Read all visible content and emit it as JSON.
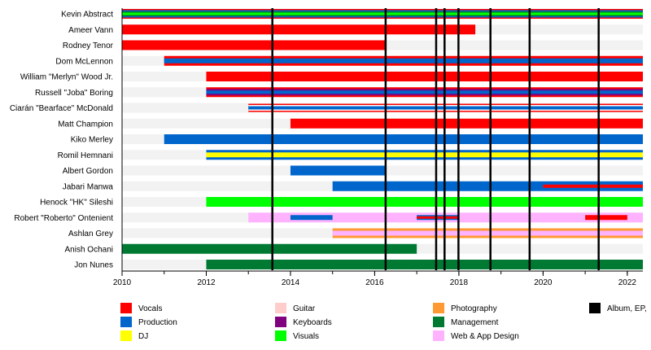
{
  "chart_data": {
    "type": "timeline",
    "title": "",
    "xlim": [
      2010,
      2022.37
    ],
    "x_ticks": [
      2010,
      2012,
      2014,
      2016,
      2018,
      2020,
      2022
    ],
    "x_tick_labels": [
      "2010",
      "2012",
      "2014",
      "2016",
      "2018",
      "2020",
      "2022"
    ],
    "grid": false,
    "roles": {
      "vocals": {
        "label": "Vocals",
        "color": "#ff0000"
      },
      "production": {
        "label": "Production",
        "color": "#0066cc"
      },
      "dj": {
        "label": "DJ",
        "color": "#ffff00"
      },
      "guitar": {
        "label": "Guitar",
        "color": "#ffcccc"
      },
      "keyboards": {
        "label": "Keyboards",
        "color": "#800080"
      },
      "visuals": {
        "label": "Visuals",
        "color": "#00ff00"
      },
      "photography": {
        "label": "Photography",
        "color": "#ff9933"
      },
      "management": {
        "label": "Management",
        "color": "#007a33"
      },
      "web": {
        "label": "Web & App Design",
        "color": "#ffb3ff"
      },
      "album": {
        "label": "Album, EP,",
        "color": "#000000"
      }
    },
    "legend_columns": [
      [
        "vocals",
        "production",
        "dj"
      ],
      [
        "guitar",
        "keyboards",
        "visuals"
      ],
      [
        "photography",
        "management",
        "web"
      ],
      [
        "album"
      ]
    ],
    "releases": [
      2013.57,
      2016.26,
      2017.46,
      2017.66,
      2017.99,
      2018.75,
      2019.68,
      2021.32
    ],
    "members": [
      {
        "name": "Kevin Abstract",
        "segments": [
          {
            "start": 2010,
            "end": 2022.37,
            "roles": [
              "vocals",
              "production",
              "management",
              "visuals"
            ]
          }
        ]
      },
      {
        "name": "Ameer Vann",
        "segments": [
          {
            "start": 2010,
            "end": 2018.39,
            "roles": [
              "vocals"
            ]
          }
        ]
      },
      {
        "name": "Rodney Tenor",
        "segments": [
          {
            "start": 2010,
            "end": 2016.26,
            "roles": [
              "vocals"
            ]
          }
        ]
      },
      {
        "name": "Dom McLennon",
        "segments": [
          {
            "start": 2011,
            "end": 2022.37,
            "roles": [
              "vocals",
              "production"
            ]
          }
        ]
      },
      {
        "name": "William \"Merlyn\" Wood Jr.",
        "segments": [
          {
            "start": 2012,
            "end": 2022.37,
            "roles": [
              "vocals"
            ]
          }
        ]
      },
      {
        "name": "Russell \"Joba\" Boring",
        "segments": [
          {
            "start": 2012,
            "end": 2022.37,
            "roles": [
              "vocals",
              "keyboards",
              "production"
            ]
          }
        ]
      },
      {
        "name": "Ciarán \"Bearface\" McDonald",
        "segments": [
          {
            "start": 2013,
            "end": 2022.37,
            "roles": [
              "vocals",
              "production"
            ],
            "thin": true
          }
        ]
      },
      {
        "name": "Matt Champion",
        "segments": [
          {
            "start": 2014,
            "end": 2022.37,
            "roles": [
              "vocals"
            ]
          }
        ]
      },
      {
        "name": "Kiko Merley",
        "segments": [
          {
            "start": 2011,
            "end": 2022.37,
            "roles": [
              "production"
            ]
          }
        ]
      },
      {
        "name": "Romil Hemnani",
        "segments": [
          {
            "start": 2012,
            "end": 2022.37,
            "roles": [
              "production",
              "dj"
            ]
          }
        ]
      },
      {
        "name": "Albert Gordon",
        "segments": [
          {
            "start": 2014,
            "end": 2016.26,
            "roles": [
              "production"
            ]
          }
        ]
      },
      {
        "name": "Jabari Manwa",
        "segments": [
          {
            "start": 2015,
            "end": 2022.37,
            "roles": [
              "production"
            ]
          },
          {
            "start": 2020,
            "end": 2022.37,
            "roles": [
              "vocals"
            ],
            "overlay": "thin"
          }
        ]
      },
      {
        "name": "Henock \"HK\" Sileshi",
        "segments": [
          {
            "start": 2012,
            "end": 2022.37,
            "roles": [
              "visuals"
            ]
          }
        ]
      },
      {
        "name": "Robert \"Roberto\" Ontenient",
        "segments": [
          {
            "start": 2013,
            "end": 2022.37,
            "roles": [
              "web"
            ]
          },
          {
            "start": 2014,
            "end": 2015,
            "roles": [
              "production"
            ],
            "overlay": "mid"
          },
          {
            "start": 2017,
            "end": 2018,
            "roles": [
              "production",
              "vocals"
            ],
            "overlay": "mid"
          },
          {
            "start": 2021,
            "end": 2022,
            "roles": [
              "vocals"
            ],
            "overlay": "mid"
          }
        ]
      },
      {
        "name": "Ashlan Grey",
        "segments": [
          {
            "start": 2015,
            "end": 2022.37,
            "roles": [
              "photography",
              "web"
            ]
          }
        ]
      },
      {
        "name": "Anish Ochani",
        "segments": [
          {
            "start": 2010,
            "end": 2017,
            "roles": [
              "management"
            ]
          }
        ]
      },
      {
        "name": "Jon Nunes",
        "segments": [
          {
            "start": 2012,
            "end": 2022.37,
            "roles": [
              "management"
            ]
          }
        ]
      }
    ]
  }
}
